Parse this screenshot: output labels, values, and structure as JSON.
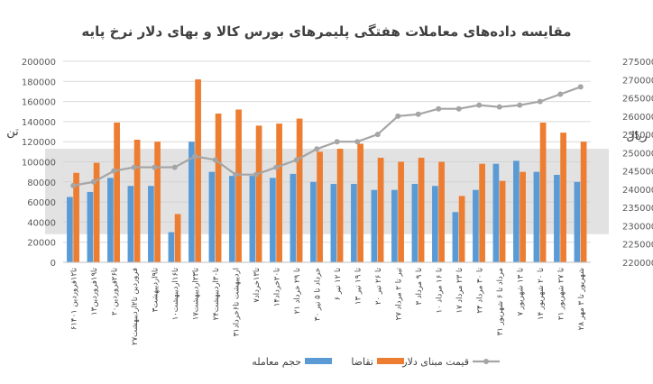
{
  "chart_data": {
    "type": "bar",
    "title": "مقایسه داده‌های معاملات هفتگی پلیمرهای بورس کالا و بهای دلار نرخ پایه",
    "ylabel": "تن",
    "y2label": "ریال",
    "ylim": [
      0,
      200000
    ],
    "y2lim": [
      220000,
      275000
    ],
    "y_ticks": [
      "0",
      "20000",
      "40000",
      "60000",
      "80000",
      "100000",
      "120000",
      "140000",
      "160000",
      "180000",
      "200000"
    ],
    "y2_ticks": [
      "220000",
      "225000",
      "230000",
      "235000",
      "240000",
      "245000",
      "250000",
      "255000",
      "260000",
      "265000",
      "270000",
      "275000"
    ],
    "grid": true,
    "legend_position": "bottom",
    "categories": [
      "۶تا۱۲فروردین ۱۴۰۱",
      "۱۳تا۱۹فروردین",
      "۲۰تا۲۶فروردین",
      "۲۷فروردین تا۲اردیبهشت",
      "۳تا۹اردیبهشت",
      "۱۰تا۱۶اردیبهشت",
      "۱۷تا۲۳اردیبهشت",
      "۲۴تا۳۰اردیبهشت",
      "۳۱اردیبهشت تا۶خرداد",
      "۷تا۱۳خرداد",
      "۱۴تا۲۰خرداد",
      "۲۱ تا ۲۹ خرداد",
      "۳۰ خرداد تا ۵ تیر",
      "۶ تا ۱۲ تیر",
      "۱۳ تا ۱۹ تیر",
      "۲۰ تا ۲۶ تیر",
      "۲۷ تیر تا ۲ مرداد",
      "۳ تا ۹ مرداد",
      "۱۰ تا ۱۶ مرداد",
      "۱۷ تا ۲۳ مرداد",
      "۲۴ تا ۳۰ مرداد",
      "۳۱ مرداد تا ۶ شهریور",
      "۷ تا ۱۳ شهریور",
      "۱۴ تا ۲۰ شهریور",
      "۲۱ تا ۲۷ شهریور",
      "۲۸ شهریور تا ۳ مهر"
    ],
    "series": [
      {
        "name": "حجم معامله",
        "type": "bar",
        "axis": "left",
        "color": "#5b9bd5",
        "values": [
          65000,
          70000,
          84000,
          76000,
          76000,
          30000,
          120000,
          90000,
          86000,
          86000,
          84000,
          88000,
          80000,
          78000,
          78000,
          72000,
          72000,
          78000,
          76000,
          50000,
          72000,
          98000,
          101000,
          90000,
          87000,
          80000
        ]
      },
      {
        "name": "تقاضا",
        "type": "bar",
        "axis": "left",
        "color": "#ed7d31",
        "values": [
          89000,
          99000,
          139000,
          122000,
          120000,
          48000,
          182000,
          148000,
          152000,
          136000,
          138000,
          143000,
          110000,
          113000,
          118000,
          104000,
          100000,
          104000,
          100000,
          66000,
          98000,
          81000,
          90000,
          139000,
          129000,
          120000
        ]
      },
      {
        "name": "قیمت مبنای دلار",
        "type": "line",
        "axis": "right",
        "color": "#a5a5a5",
        "values": [
          241000,
          242000,
          245000,
          246000,
          246000,
          246000,
          249000,
          248000,
          244000,
          244000,
          246000,
          248000,
          251000,
          253000,
          253000,
          255000,
          260000,
          260500,
          262000,
          262000,
          263000,
          262500,
          263000,
          264000,
          266000,
          268000
        ]
      }
    ]
  }
}
